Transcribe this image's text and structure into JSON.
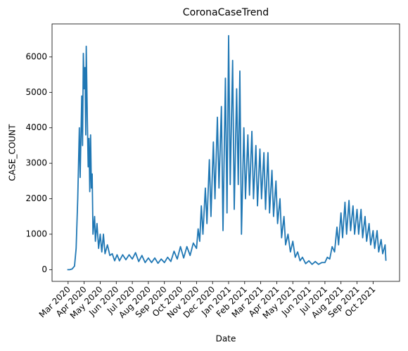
{
  "chart_data": {
    "type": "line",
    "title": "CoronaCaseTrend",
    "x_label": "Date",
    "y_label": "CASE_COUNT",
    "color": "#1f77b4",
    "x": [
      -0.05,
      0.1,
      0.25,
      0.4,
      0.5,
      0.6,
      0.7,
      0.75,
      0.85,
      0.9,
      0.95,
      1.0,
      1.05,
      1.1,
      1.13,
      1.2,
      1.25,
      1.3,
      1.35,
      1.4,
      1.45,
      1.5,
      1.55,
      1.65,
      1.7,
      1.8,
      1.9,
      2.0,
      2.1,
      2.2,
      2.3,
      2.45,
      2.6,
      2.75,
      2.9,
      3.05,
      3.2,
      3.4,
      3.6,
      3.8,
      4.0,
      4.2,
      4.4,
      4.6,
      4.8,
      5.0,
      5.2,
      5.4,
      5.6,
      5.8,
      6.0,
      6.2,
      6.4,
      6.6,
      6.8,
      7.0,
      7.2,
      7.4,
      7.6,
      7.8,
      8.0,
      8.1,
      8.2,
      8.3,
      8.4,
      8.55,
      8.65,
      8.8,
      8.9,
      9.05,
      9.15,
      9.3,
      9.4,
      9.55,
      9.65,
      9.8,
      9.9,
      10.0,
      10.1,
      10.25,
      10.35,
      10.5,
      10.6,
      10.7,
      10.8,
      10.95,
      11.05,
      11.2,
      11.3,
      11.45,
      11.55,
      11.7,
      11.8,
      11.95,
      12.05,
      12.2,
      12.3,
      12.45,
      12.55,
      12.7,
      12.8,
      12.95,
      13.05,
      13.2,
      13.3,
      13.45,
      13.55,
      13.7,
      13.85,
      14.0,
      14.15,
      14.3,
      14.45,
      14.6,
      14.8,
      15.0,
      15.2,
      15.4,
      15.6,
      15.8,
      16.0,
      16.15,
      16.3,
      16.45,
      16.6,
      16.75,
      16.85,
      17.0,
      17.1,
      17.25,
      17.35,
      17.5,
      17.6,
      17.75,
      17.85,
      18.0,
      18.1,
      18.25,
      18.35,
      18.5,
      18.6,
      18.75,
      18.85,
      19.0,
      19.1,
      19.25,
      19.35,
      19.5,
      19.6,
      19.75,
      19.8
    ],
    "values": [
      0,
      0,
      20,
      100,
      600,
      2000,
      4000,
      2600,
      4900,
      3500,
      6100,
      5100,
      5700,
      3800,
      6300,
      4200,
      2900,
      3700,
      2200,
      3800,
      2300,
      2700,
      1000,
      1500,
      800,
      1300,
      600,
      1000,
      500,
      1000,
      450,
      700,
      400,
      450,
      250,
      420,
      250,
      420,
      280,
      420,
      300,
      480,
      230,
      400,
      200,
      330,
      200,
      330,
      180,
      300,
      200,
      350,
      230,
      520,
      300,
      650,
      330,
      650,
      400,
      750,
      600,
      1150,
      800,
      1800,
      1000,
      2300,
      1300,
      3100,
      1500,
      3600,
      2000,
      4300,
      2300,
      4600,
      1100,
      5400,
      1600,
      6600,
      2400,
      5900,
      1700,
      5100,
      2400,
      5600,
      1000,
      4000,
      2000,
      3800,
      2100,
      3900,
      2000,
      3500,
      1800,
      3400,
      2000,
      3300,
      1700,
      3300,
      1600,
      2800,
      1500,
      2500,
      1300,
      2000,
      900,
      1500,
      700,
      1000,
      500,
      800,
      350,
      500,
      250,
      350,
      170,
      250,
      150,
      230,
      150,
      200,
      200,
      350,
      300,
      650,
      500,
      1200,
      700,
      1600,
      900,
      1900,
      1000,
      1950,
      1100,
      1800,
      1000,
      1700,
      1000,
      1700,
      900,
      1500,
      800,
      1300,
      700,
      1100,
      600,
      1100,
      500,
      850,
      450,
      700,
      250
    ],
    "xlim": [
      -1.0,
      20.65
    ],
    "ylim": [
      -330,
      6930
    ],
    "xticks": [
      {
        "value": 0,
        "label": "Mar 2020"
      },
      {
        "value": 1,
        "label": "Apr 2020"
      },
      {
        "value": 2,
        "label": "May 2020"
      },
      {
        "value": 3,
        "label": "Jun 2020"
      },
      {
        "value": 4,
        "label": "Jul 2020"
      },
      {
        "value": 5,
        "label": "Aug 2020"
      },
      {
        "value": 6,
        "label": "Sep 2020"
      },
      {
        "value": 7,
        "label": "Oct 2020"
      },
      {
        "value": 8,
        "label": "Nov 2020"
      },
      {
        "value": 9,
        "label": "Dec 2020"
      },
      {
        "value": 10,
        "label": "Jan 2021"
      },
      {
        "value": 11,
        "label": "Feb 2021"
      },
      {
        "value": 12,
        "label": "Mar 2021"
      },
      {
        "value": 13,
        "label": "Apr 2021"
      },
      {
        "value": 14,
        "label": "May 2021"
      },
      {
        "value": 15,
        "label": "Jun 2021"
      },
      {
        "value": 16,
        "label": "Jul 2021"
      },
      {
        "value": 17,
        "label": "Aug 2021"
      },
      {
        "value": 18,
        "label": "Sep 2021"
      },
      {
        "value": 19,
        "label": "Oct 2021"
      }
    ],
    "yticks": [
      0,
      1000,
      2000,
      3000,
      4000,
      5000,
      6000
    ]
  }
}
